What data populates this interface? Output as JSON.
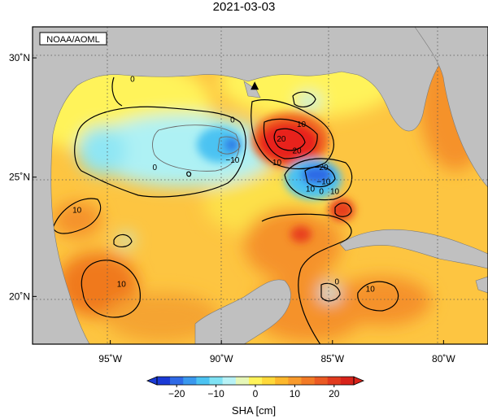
{
  "title": "2021-03-03",
  "credit": "NOAA/AOML",
  "axes": {
    "lon_ticks": [
      {
        "value": -95,
        "label": "95˚W"
      },
      {
        "value": -90,
        "label": "90˚W"
      },
      {
        "value": -85,
        "label": "85˚W"
      },
      {
        "value": -80,
        "label": "80˚W"
      }
    ],
    "lat_ticks": [
      {
        "value": 30,
        "label": "30˚N"
      },
      {
        "value": 25,
        "label": "25˚N"
      },
      {
        "value": 20,
        "label": "20˚N"
      }
    ],
    "lon_range": [
      -98.5,
      -78
    ],
    "lat_range": [
      18,
      31.3
    ]
  },
  "colorbar": {
    "label": "SHA [cm]",
    "range": [
      -25,
      25
    ],
    "ticks": [
      {
        "value": -20,
        "label": "−20"
      },
      {
        "value": -10,
        "label": "−10"
      },
      {
        "value": 0,
        "label": "0"
      },
      {
        "value": 10,
        "label": "10"
      },
      {
        "value": 20,
        "label": "20"
      }
    ],
    "colors": [
      "#1a3ad6",
      "#2f6ae6",
      "#3a98ee",
      "#4cc3f2",
      "#7fe2f4",
      "#b8f2f6",
      "#e6f7b8",
      "#fff35a",
      "#ffd93a",
      "#fdb82c",
      "#f89a2c",
      "#f27a26",
      "#eb5a23",
      "#e13b1e",
      "#d8231a"
    ]
  },
  "colors": {
    "land": "#c0c0c0",
    "background_sha": "#fdc541",
    "high": "#e8241b",
    "low": "#2f7ce6",
    "contour": "#000000"
  },
  "contour_labels": [
    {
      "text": "0",
      "lon": -94.0,
      "lat": 29.0
    },
    {
      "text": "0",
      "lon": -89.5,
      "lat": 27.3
    },
    {
      "text": "0",
      "lon": -93.0,
      "lat": 25.3
    },
    {
      "text": "0",
      "lon": -85.5,
      "lat": 24.3
    },
    {
      "text": "0",
      "lon": -84.8,
      "lat": 20.5
    },
    {
      "text": "10",
      "lon": -86.4,
      "lat": 27.1
    },
    {
      "text": "10",
      "lon": -87.5,
      "lat": 25.5
    },
    {
      "text": "10",
      "lon": -86.0,
      "lat": 24.4
    },
    {
      "text": "10",
      "lon": -84.9,
      "lat": 24.3
    },
    {
      "text": "10",
      "lon": -94.5,
      "lat": 20.4
    },
    {
      "text": "10",
      "lon": -96.5,
      "lat": 23.5
    },
    {
      "text": "10",
      "lon": -83.3,
      "lat": 20.2
    },
    {
      "text": "−10",
      "lon": -89.5,
      "lat": 25.6
    },
    {
      "text": "−10",
      "lon": -85.4,
      "lat": 24.7
    },
    {
      "text": "20",
      "lon": -87.3,
      "lat": 26.5
    },
    {
      "text": "20",
      "lon": -86.6,
      "lat": 26.0
    },
    {
      "text": "−20",
      "lon": -85.5,
      "lat": 25.3
    }
  ],
  "marker": {
    "name": "triangle",
    "lon": -88.5,
    "lat": 28.8
  }
}
